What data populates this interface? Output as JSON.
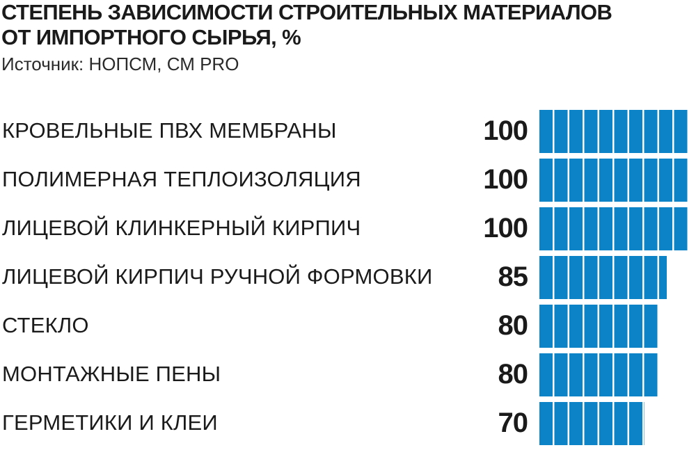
{
  "header": {
    "title_line1": "СТЕПЕНЬ ЗАВИСИМОСТИ СТРОИТЕЛЬНЫХ МАТЕРИАЛОВ",
    "title_line2": "ОТ ИМПОРТНОГО СЫРЬЯ, %",
    "source": "Источник: НОПСМ, СМ PRO"
  },
  "colors": {
    "bar": "#0b83c6",
    "text": "#1a1a1a"
  },
  "chart_data": {
    "type": "bar",
    "orientation": "horizontal",
    "title": "СТЕПЕНЬ ЗАВИСИМОСТИ СТРОИТЕЛЬНЫХ МАТЕРИАЛОВ ОТ ИМПОРТНОГО СЫРЬЯ, %",
    "xlim": [
      0,
      100
    ],
    "grid": false,
    "categories": [
      "КРОВЕЛЬНЫЕ ПВХ МЕМБРАНЫ",
      "ПОЛИМЕРНАЯ ТЕПЛОИЗОЛЯЦИЯ",
      "ЛИЦЕВОЙ КЛИНКЕРНЫЙ КИРПИЧ",
      "ЛИЦЕВОЙ КИРПИЧ РУЧНОЙ ФОРМОВКИ",
      "СТЕКЛО",
      "МОНТАЖНЫЕ ПЕНЫ",
      "ГЕРМЕТИКИ И КЛЕИ"
    ],
    "values": [
      100,
      100,
      100,
      85,
      80,
      80,
      70
    ],
    "value_labels": [
      "100",
      "100",
      "100",
      "85",
      "80",
      "80",
      "70"
    ]
  }
}
